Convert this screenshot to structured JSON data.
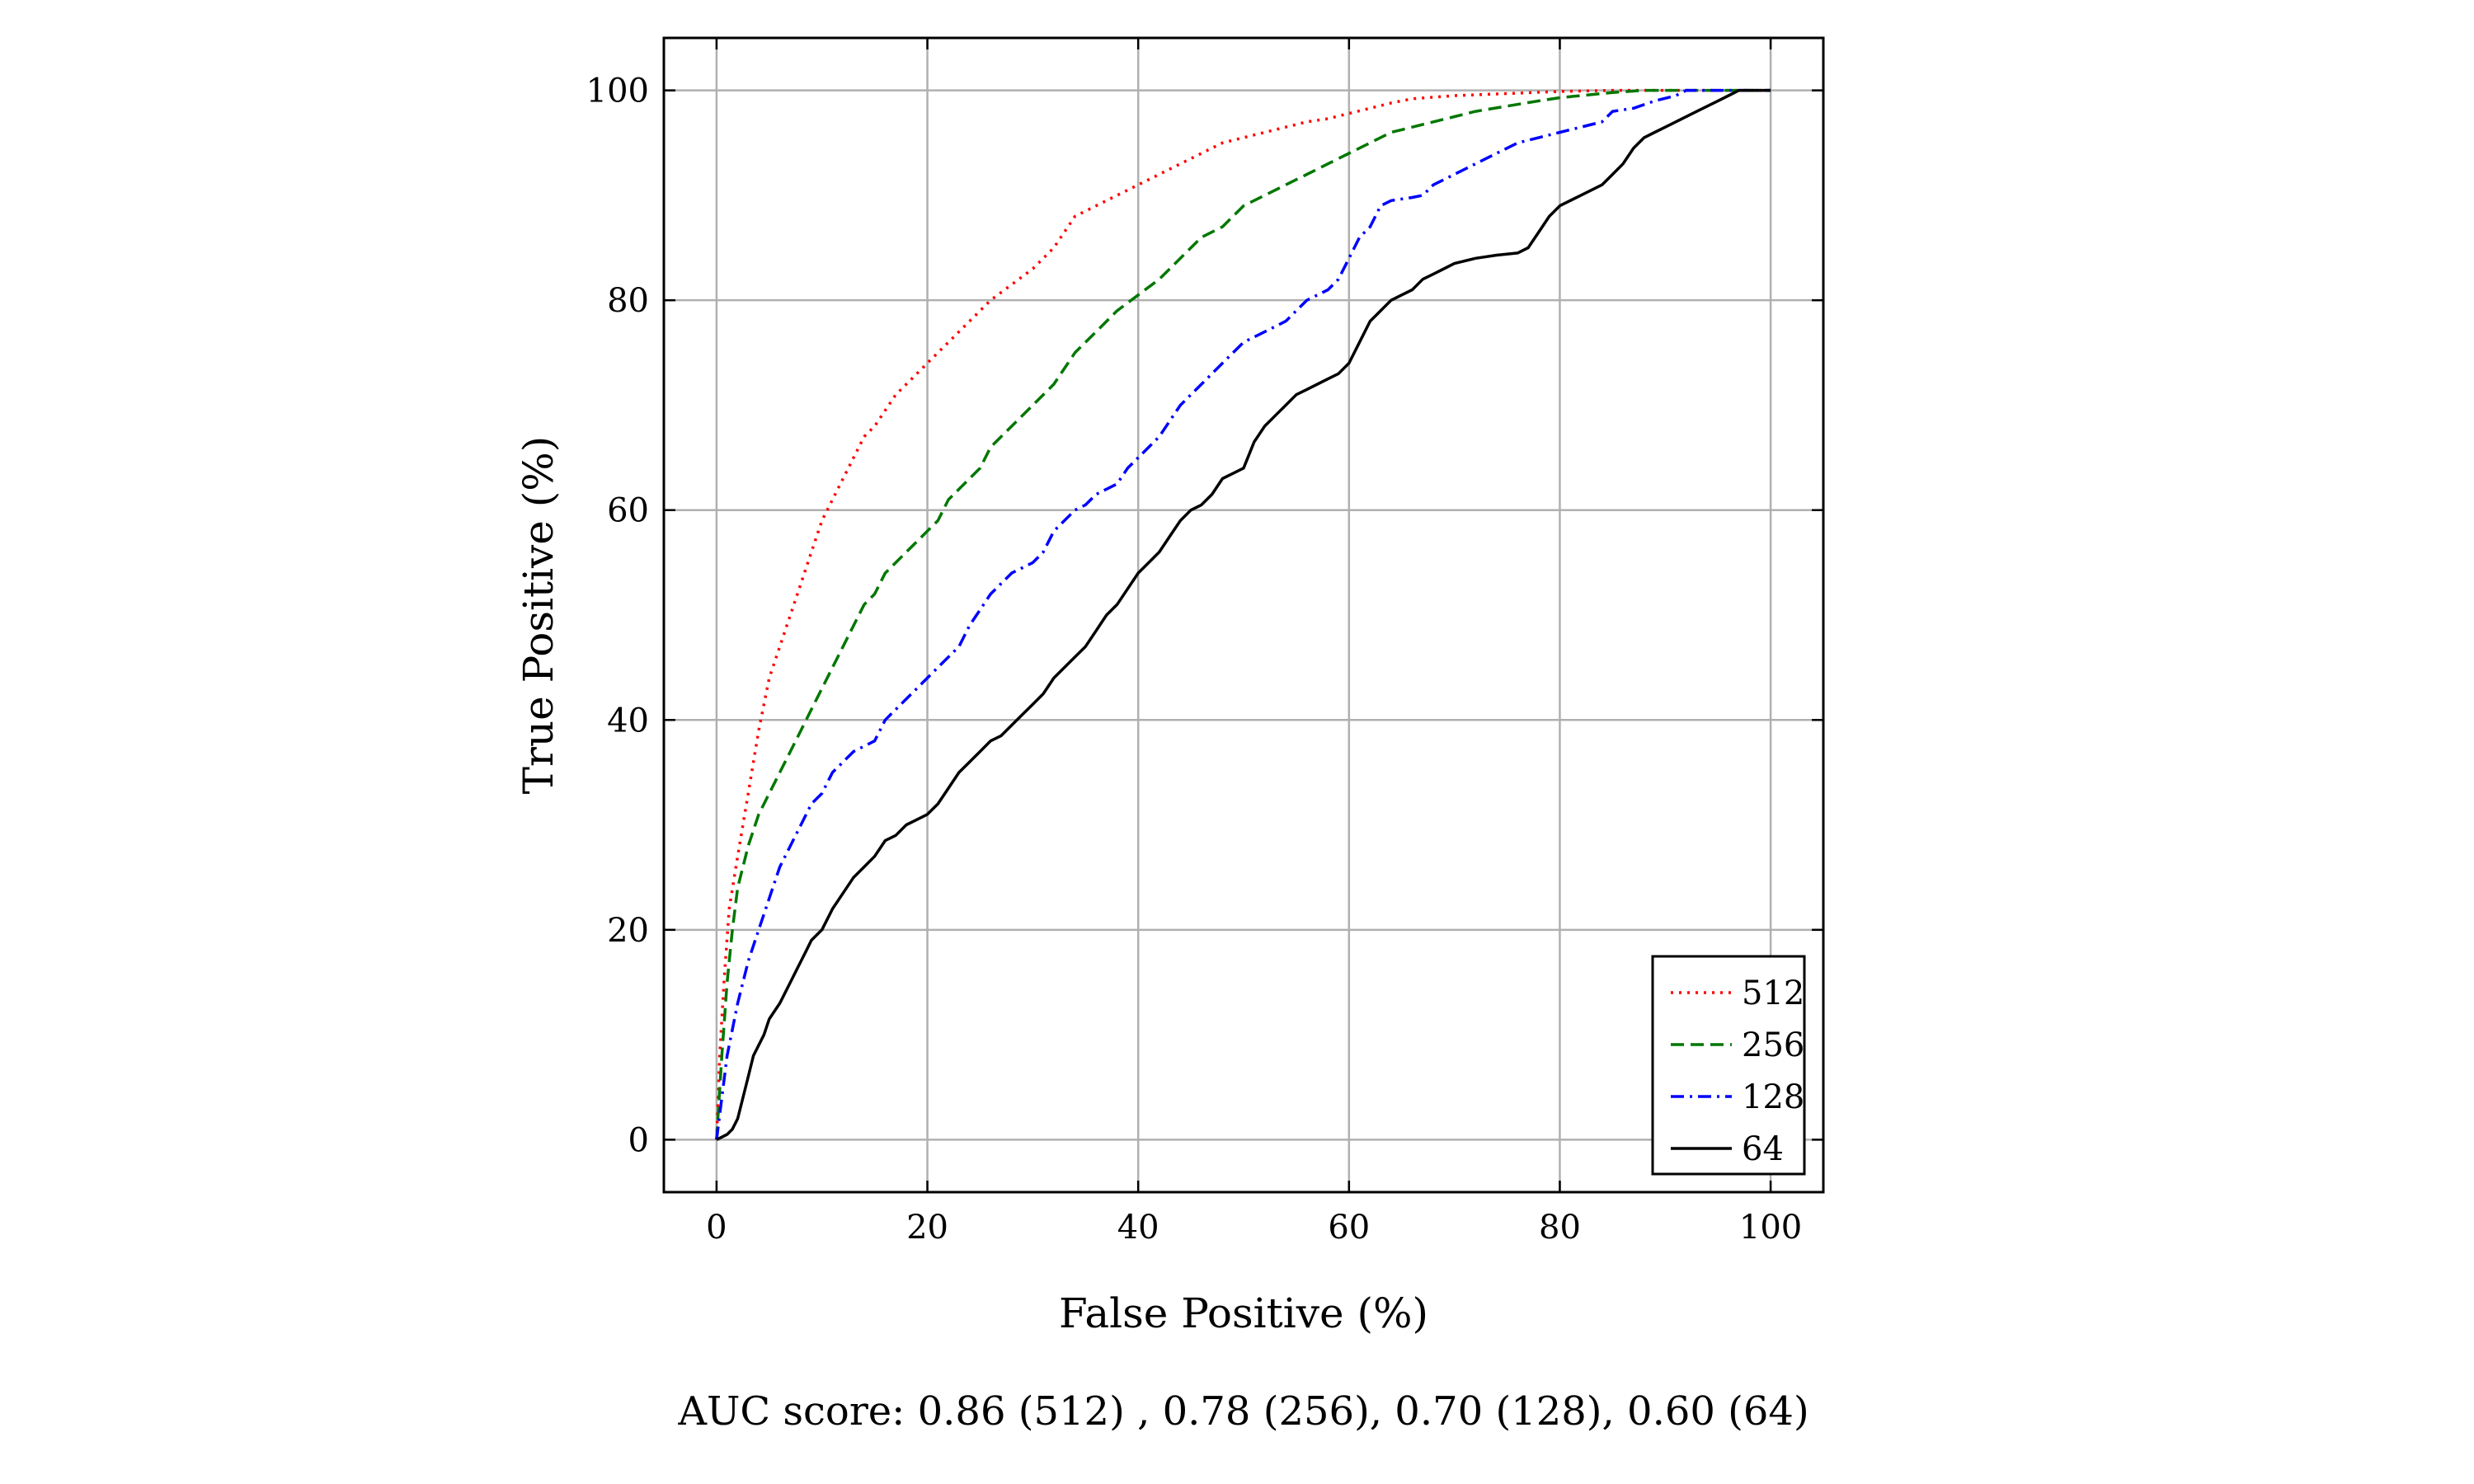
{
  "chart_data": {
    "type": "line",
    "xlabel": "False Positive (%)",
    "ylabel": "True Positive (%)",
    "xlim": [
      -5,
      105
    ],
    "ylim": [
      -5,
      105
    ],
    "x_ticks": [
      0,
      20,
      40,
      60,
      80,
      100
    ],
    "y_ticks": [
      0,
      20,
      40,
      60,
      80,
      100
    ],
    "x_tick_labels": [
      "0",
      "20",
      "40",
      "60",
      "80",
      "100"
    ],
    "y_tick_labels": [
      "0",
      "20",
      "40",
      "60",
      "80",
      "100"
    ],
    "grid": true,
    "legend_position": "bottom-right",
    "caption": "AUC score: 0.86 (512) , 0.78 (256), 0.70 (128), 0.60 (64)",
    "series": [
      {
        "name": "512",
        "color": "#ff0000",
        "style": "dotted",
        "points": [
          [
            0,
            0
          ],
          [
            0.3,
            8
          ],
          [
            0.7,
            15
          ],
          [
            1.2,
            22
          ],
          [
            2,
            27
          ],
          [
            3,
            33
          ],
          [
            4,
            39
          ],
          [
            5,
            44
          ],
          [
            6,
            47
          ],
          [
            7,
            50
          ],
          [
            8,
            53
          ],
          [
            9,
            56
          ],
          [
            10,
            59
          ],
          [
            11,
            61
          ],
          [
            12,
            63
          ],
          [
            13,
            65
          ],
          [
            14,
            67
          ],
          [
            15,
            68
          ],
          [
            16,
            69.5
          ],
          [
            17,
            71
          ],
          [
            18,
            72
          ],
          [
            19,
            73
          ],
          [
            20,
            74
          ],
          [
            21,
            75
          ],
          [
            22,
            76
          ],
          [
            24,
            78
          ],
          [
            26,
            80
          ],
          [
            28,
            81.5
          ],
          [
            30,
            83
          ],
          [
            32,
            85
          ],
          [
            34,
            88
          ],
          [
            36,
            89
          ],
          [
            38,
            90
          ],
          [
            40,
            91
          ],
          [
            42,
            92
          ],
          [
            44,
            93
          ],
          [
            46,
            94
          ],
          [
            48,
            95
          ],
          [
            50,
            95.5
          ],
          [
            52,
            96
          ],
          [
            54,
            96.5
          ],
          [
            56,
            97
          ],
          [
            58,
            97.3
          ],
          [
            60,
            97.8
          ],
          [
            62,
            98.3
          ],
          [
            64,
            98.8
          ],
          [
            66,
            99.2
          ],
          [
            70,
            99.5
          ],
          [
            75,
            99.7
          ],
          [
            80,
            99.9
          ],
          [
            85,
            100
          ],
          [
            100,
            100
          ]
        ]
      },
      {
        "name": "256",
        "color": "#007700",
        "style": "dashed",
        "points": [
          [
            0,
            0
          ],
          [
            0.5,
            8
          ],
          [
            1,
            15
          ],
          [
            1.5,
            20
          ],
          [
            2,
            24
          ],
          [
            3,
            28
          ],
          [
            4,
            31
          ],
          [
            5,
            33
          ],
          [
            6,
            35
          ],
          [
            7,
            37
          ],
          [
            8,
            39
          ],
          [
            9,
            41
          ],
          [
            10,
            43
          ],
          [
            11,
            45
          ],
          [
            12,
            47
          ],
          [
            13,
            49
          ],
          [
            14,
            51
          ],
          [
            15,
            52
          ],
          [
            16,
            54
          ],
          [
            17,
            55
          ],
          [
            18,
            56
          ],
          [
            19,
            57
          ],
          [
            20,
            58
          ],
          [
            21,
            59
          ],
          [
            22,
            61
          ],
          [
            23,
            62
          ],
          [
            24,
            63
          ],
          [
            25,
            64
          ],
          [
            26,
            66
          ],
          [
            27,
            67
          ],
          [
            28,
            68
          ],
          [
            30,
            70
          ],
          [
            32,
            72
          ],
          [
            34,
            75
          ],
          [
            36,
            77
          ],
          [
            38,
            79
          ],
          [
            40,
            80.5
          ],
          [
            42,
            82
          ],
          [
            44,
            84
          ],
          [
            46,
            86
          ],
          [
            48,
            87
          ],
          [
            50,
            89
          ],
          [
            52,
            90
          ],
          [
            54,
            91
          ],
          [
            56,
            92
          ],
          [
            58,
            93
          ],
          [
            60,
            94
          ],
          [
            62,
            95
          ],
          [
            64,
            96
          ],
          [
            66,
            96.5
          ],
          [
            68,
            97
          ],
          [
            70,
            97.5
          ],
          [
            72,
            98
          ],
          [
            75,
            98.5
          ],
          [
            78,
            99
          ],
          [
            80,
            99.3
          ],
          [
            85,
            99.8
          ],
          [
            88,
            100
          ],
          [
            100,
            100
          ]
        ]
      },
      {
        "name": "128",
        "color": "#0000ff",
        "style": "dashdot",
        "points": [
          [
            0,
            0
          ],
          [
            0.5,
            4
          ],
          [
            1,
            8
          ],
          [
            2,
            13
          ],
          [
            3,
            17
          ],
          [
            4,
            20
          ],
          [
            5,
            23
          ],
          [
            6,
            26
          ],
          [
            7,
            28
          ],
          [
            8,
            30
          ],
          [
            9,
            32
          ],
          [
            10,
            33
          ],
          [
            11,
            35
          ],
          [
            12,
            36
          ],
          [
            13,
            37
          ],
          [
            14,
            37.5
          ],
          [
            15,
            38
          ],
          [
            16,
            40
          ],
          [
            17,
            41
          ],
          [
            18,
            42
          ],
          [
            19,
            43
          ],
          [
            20,
            44
          ],
          [
            21,
            45
          ],
          [
            22,
            46
          ],
          [
            23,
            47
          ],
          [
            24,
            49
          ],
          [
            25,
            50.5
          ],
          [
            26,
            52
          ],
          [
            27,
            53
          ],
          [
            28,
            54
          ],
          [
            30,
            55
          ],
          [
            31,
            56
          ],
          [
            32,
            58
          ],
          [
            33,
            59
          ],
          [
            34,
            60
          ],
          [
            35,
            60.5
          ],
          [
            36,
            61.5
          ],
          [
            37,
            62
          ],
          [
            38,
            62.5
          ],
          [
            39,
            64
          ],
          [
            40,
            65
          ],
          [
            41,
            66
          ],
          [
            42,
            67
          ],
          [
            44,
            70
          ],
          [
            46,
            72
          ],
          [
            48,
            74
          ],
          [
            50,
            76
          ],
          [
            52,
            77
          ],
          [
            54,
            78
          ],
          [
            55,
            79
          ],
          [
            56,
            80
          ],
          [
            57,
            80.5
          ],
          [
            58,
            81
          ],
          [
            59,
            82
          ],
          [
            60,
            84
          ],
          [
            61,
            86
          ],
          [
            62,
            87
          ],
          [
            63,
            89
          ],
          [
            64,
            89.5
          ],
          [
            66,
            89.8
          ],
          [
            67,
            90
          ],
          [
            68,
            91
          ],
          [
            70,
            92
          ],
          [
            72,
            93
          ],
          [
            74,
            94
          ],
          [
            76,
            95
          ],
          [
            78,
            95.5
          ],
          [
            80,
            96
          ],
          [
            82,
            96.5
          ],
          [
            84,
            97
          ],
          [
            85,
            98
          ],
          [
            87,
            98.3
          ],
          [
            89,
            99
          ],
          [
            91,
            99.5
          ],
          [
            92,
            100
          ],
          [
            100,
            100
          ]
        ]
      },
      {
        "name": "64",
        "color": "#000000",
        "style": "solid",
        "points": [
          [
            0,
            0
          ],
          [
            1,
            0.5
          ],
          [
            1.5,
            1
          ],
          [
            2,
            2
          ],
          [
            2.5,
            4
          ],
          [
            3,
            6
          ],
          [
            3.5,
            8
          ],
          [
            4,
            9
          ],
          [
            4.5,
            10
          ],
          [
            5,
            11.5
          ],
          [
            6,
            13
          ],
          [
            6.5,
            14
          ],
          [
            7,
            15
          ],
          [
            7.5,
            16
          ],
          [
            8,
            17
          ],
          [
            8.5,
            18
          ],
          [
            9,
            19
          ],
          [
            10,
            20
          ],
          [
            11,
            22
          ],
          [
            12,
            23.5
          ],
          [
            13,
            25
          ],
          [
            14,
            26
          ],
          [
            15,
            27
          ],
          [
            16,
            28.5
          ],
          [
            17,
            29
          ],
          [
            18,
            30
          ],
          [
            19,
            30.5
          ],
          [
            20,
            31
          ],
          [
            21,
            32
          ],
          [
            22,
            33.5
          ],
          [
            23,
            35
          ],
          [
            24,
            36
          ],
          [
            25,
            37
          ],
          [
            26,
            38
          ],
          [
            27,
            38.5
          ],
          [
            28,
            39.5
          ],
          [
            29,
            40.5
          ],
          [
            30,
            41.5
          ],
          [
            31,
            42.5
          ],
          [
            32,
            44
          ],
          [
            33,
            45
          ],
          [
            34,
            46
          ],
          [
            35,
            47
          ],
          [
            36,
            48.5
          ],
          [
            37,
            50
          ],
          [
            38,
            51
          ],
          [
            39,
            52.5
          ],
          [
            40,
            54
          ],
          [
            41,
            55
          ],
          [
            42,
            56
          ],
          [
            43,
            57.5
          ],
          [
            44,
            59
          ],
          [
            45,
            60
          ],
          [
            46,
            60.5
          ],
          [
            47,
            61.5
          ],
          [
            48,
            63
          ],
          [
            49,
            63.5
          ],
          [
            50,
            64
          ],
          [
            51,
            66.5
          ],
          [
            52,
            68
          ],
          [
            53,
            69
          ],
          [
            54,
            70
          ],
          [
            55,
            71
          ],
          [
            56,
            71.5
          ],
          [
            57,
            72
          ],
          [
            58,
            72.5
          ],
          [
            59,
            73
          ],
          [
            60,
            74
          ],
          [
            61,
            76
          ],
          [
            62,
            78
          ],
          [
            63,
            79
          ],
          [
            64,
            80
          ],
          [
            65,
            80.5
          ],
          [
            66,
            81
          ],
          [
            67,
            82
          ],
          [
            68,
            82.5
          ],
          [
            69,
            83
          ],
          [
            70,
            83.5
          ],
          [
            72,
            84
          ],
          [
            74,
            84.3
          ],
          [
            76,
            84.5
          ],
          [
            77,
            85
          ],
          [
            78,
            86.5
          ],
          [
            79,
            88
          ],
          [
            80,
            89
          ],
          [
            82,
            90
          ],
          [
            84,
            91
          ],
          [
            85,
            92
          ],
          [
            86,
            93
          ],
          [
            87,
            94.5
          ],
          [
            88,
            95.5
          ],
          [
            89,
            96
          ],
          [
            90,
            96.5
          ],
          [
            91,
            97
          ],
          [
            93,
            98
          ],
          [
            95,
            99
          ],
          [
            96,
            99.5
          ],
          [
            97,
            100
          ],
          [
            100,
            100
          ]
        ]
      }
    ]
  }
}
